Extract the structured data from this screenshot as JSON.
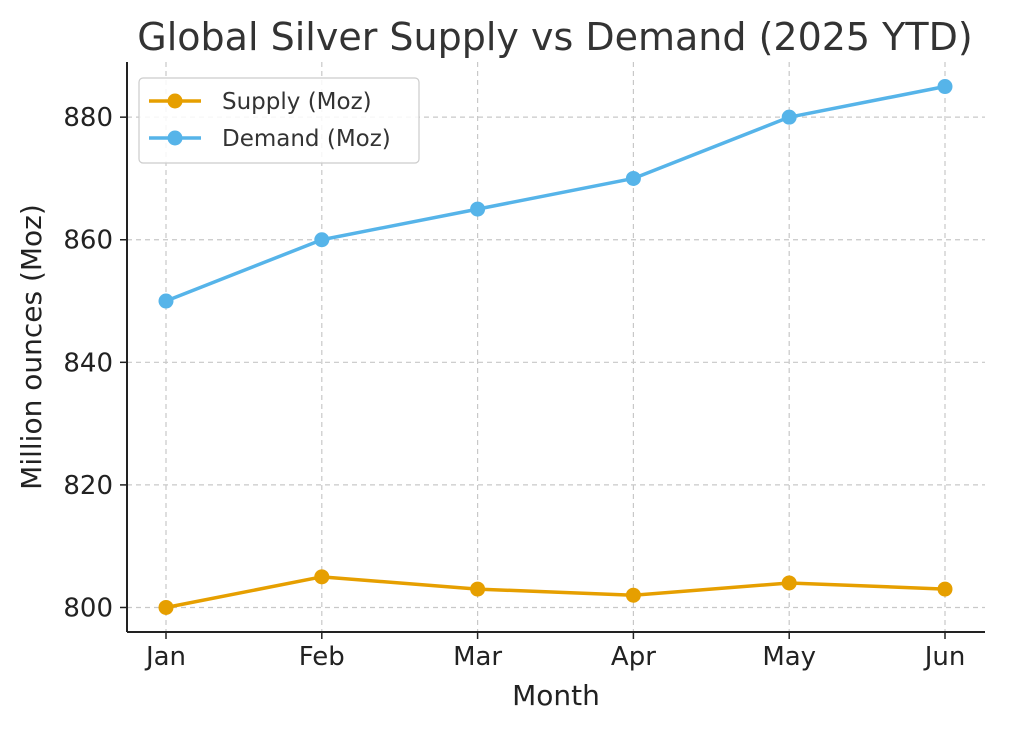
{
  "chart_data": {
    "type": "line",
    "title": "Global Silver Supply vs Demand (2025 YTD)",
    "xlabel": "Month",
    "ylabel": "Million ounces (Moz)",
    "categories": [
      "Jan",
      "Feb",
      "Mar",
      "Apr",
      "May",
      "Jun"
    ],
    "yticks": [
      800,
      820,
      840,
      860,
      880
    ],
    "ylim": [
      796,
      889
    ],
    "grid": true,
    "legend": "top-left",
    "series": [
      {
        "name": "Supply (Moz)",
        "color": "#E69F00",
        "values": [
          800,
          805,
          803,
          802,
          804,
          803
        ]
      },
      {
        "name": "Demand (Moz)",
        "color": "#56B4E9",
        "values": [
          850,
          860,
          865,
          870,
          880,
          885
        ]
      }
    ]
  }
}
